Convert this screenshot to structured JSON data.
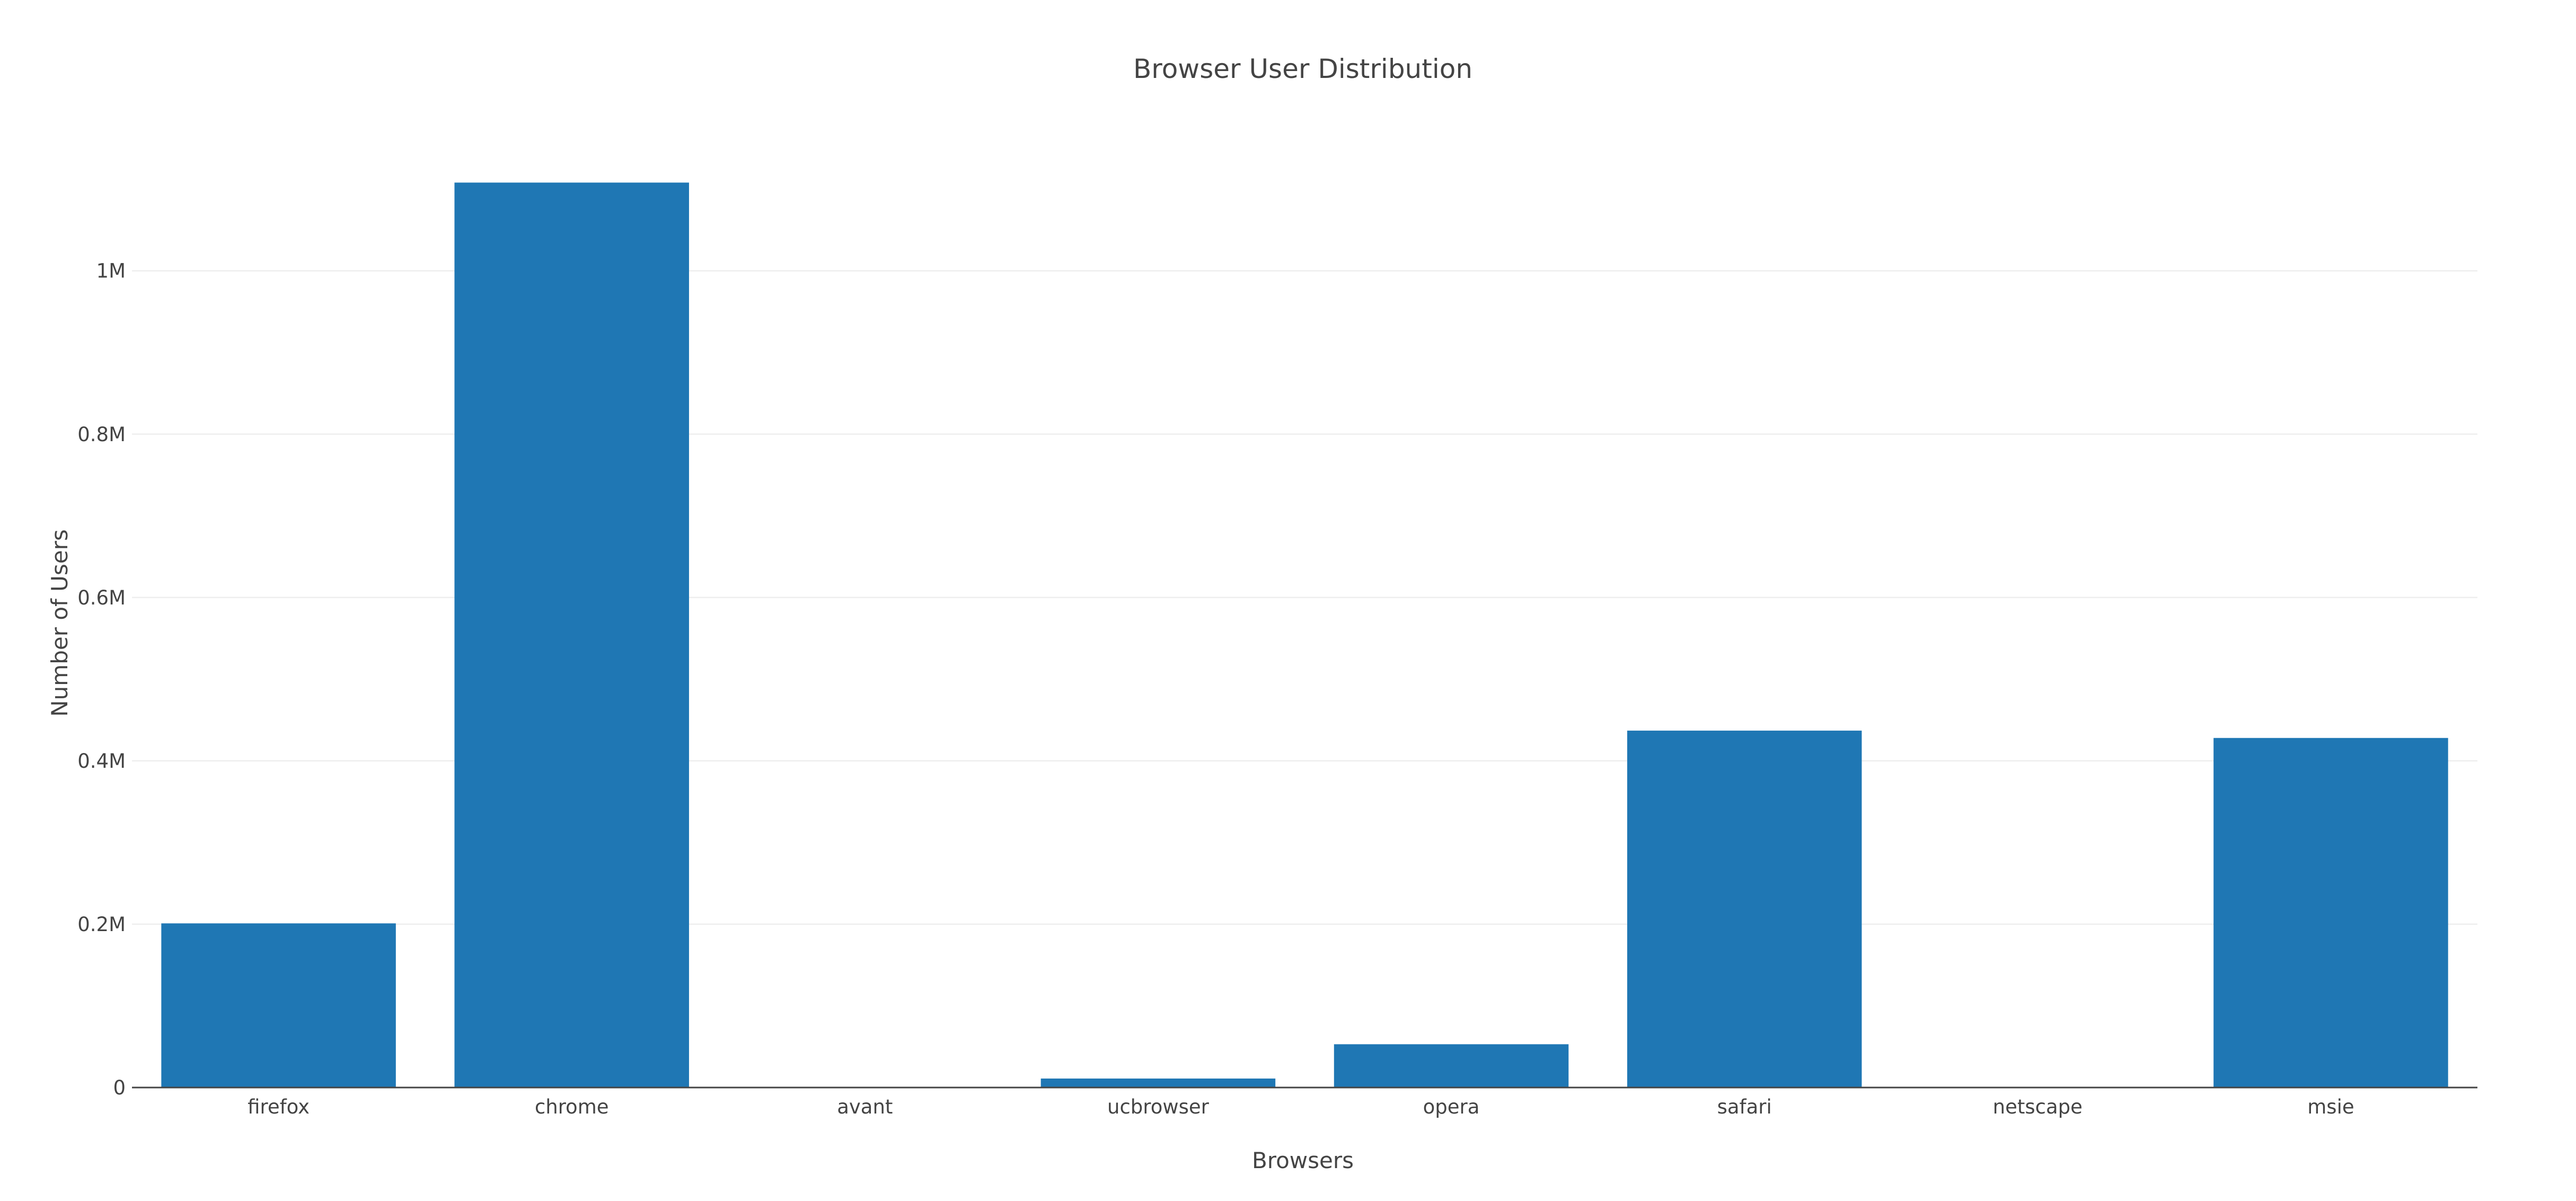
{
  "chart_data": {
    "type": "bar",
    "title": "Browser User Distribution",
    "xlabel": "Browsers",
    "ylabel": "Number of Users",
    "categories": [
      "firefox",
      "chrome",
      "avant",
      "ucbrowser",
      "opera",
      "safari",
      "netscape",
      "msie"
    ],
    "values": [
      201000,
      1108000,
      0,
      11000,
      53000,
      437000,
      0,
      428000
    ],
    "ylim": [
      0,
      1166000
    ],
    "yticks": [
      0,
      200000,
      400000,
      600000,
      800000,
      1000000
    ],
    "ytick_labels": [
      "0",
      "0.2M",
      "0.4M",
      "0.6M",
      "0.8M",
      "1M"
    ],
    "grid": true,
    "legend": "none",
    "bar_color": "#1f77b4"
  }
}
